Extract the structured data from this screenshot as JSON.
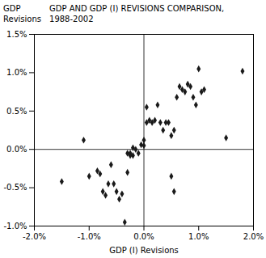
{
  "chart_data": {
    "type": "scatter",
    "title": "GDP AND GDP (I) REVISIONS COMPARISON,\n1988-2002",
    "y_label": "GDP\nRevisions",
    "x_label": "GDP (I) Revisions",
    "x": [
      -1.5,
      -1.1,
      -1.0,
      -0.85,
      -0.75,
      -0.7,
      -0.65,
      -0.55,
      -0.5,
      -0.45,
      -0.4,
      -0.35,
      -0.3,
      -0.25,
      -0.2,
      -0.15,
      -0.1,
      -0.05,
      0.0,
      0.0,
      0.05,
      0.1,
      0.15,
      0.2,
      0.25,
      0.3,
      0.35,
      0.4,
      0.45,
      0.5,
      0.55,
      0.6,
      0.65,
      0.7,
      0.75,
      0.8,
      0.85,
      0.9,
      0.95,
      1.0,
      1.05,
      1.1,
      1.5,
      1.8,
      -0.3,
      -0.25,
      -0.2,
      0.05,
      0.5,
      0.55,
      -0.6,
      -0.8
    ],
    "values": [
      -0.42,
      0.12,
      -0.35,
      -0.28,
      -0.55,
      -0.6,
      -0.45,
      -0.45,
      -0.55,
      -0.65,
      -0.58,
      -0.95,
      -0.05,
      -0.05,
      0.02,
      0.0,
      -0.05,
      0.06,
      0.12,
      0.05,
      0.35,
      0.38,
      0.35,
      0.38,
      0.58,
      0.35,
      0.25,
      0.35,
      0.35,
      0.18,
      0.25,
      0.68,
      0.82,
      0.78,
      0.75,
      0.85,
      0.82,
      0.68,
      0.58,
      1.05,
      0.75,
      0.78,
      0.15,
      1.02,
      -0.3,
      -0.08,
      -0.08,
      0.55,
      -0.35,
      -0.55,
      -0.2,
      -0.32
    ],
    "color": "#1a1a1a",
    "marker": "diamond",
    "xlim": [
      -2.0,
      2.0
    ],
    "ylim": [
      -1.0,
      1.5
    ],
    "xticks": [
      {
        "value": -2.0,
        "label": "-2.0%"
      },
      {
        "value": -1.0,
        "label": "-1.0%"
      },
      {
        "value": 0.0,
        "label": "0.0%"
      },
      {
        "value": 1.0,
        "label": "1.0%"
      },
      {
        "value": 2.0,
        "label": "2.0%"
      }
    ],
    "yticks": [
      {
        "value": -1.0,
        "label": "-1.0%"
      },
      {
        "value": -0.5,
        "label": "-0.5%"
      },
      {
        "value": 0.0,
        "label": "0.0%"
      },
      {
        "value": 0.5,
        "label": "0.5%"
      },
      {
        "value": 1.0,
        "label": "1.0%"
      },
      {
        "value": 1.5,
        "label": "1.5%"
      }
    ],
    "grid": false
  }
}
